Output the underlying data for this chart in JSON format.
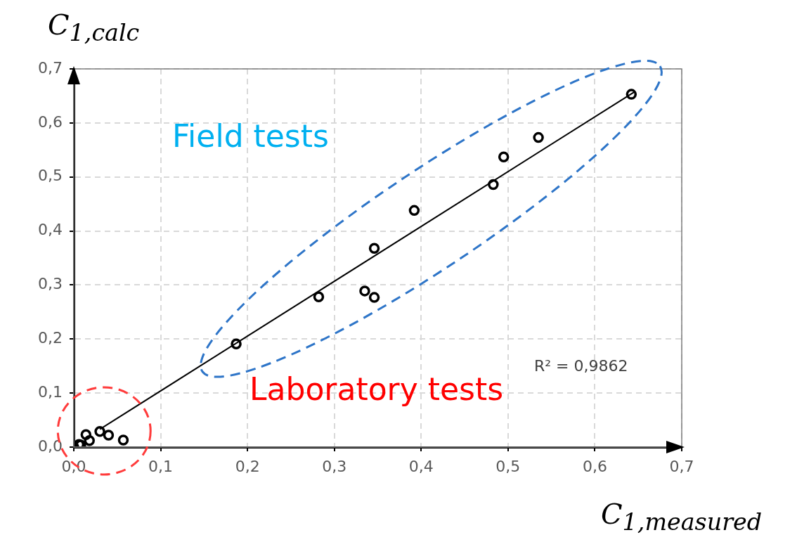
{
  "chart_data": {
    "type": "scatter",
    "xlabel": "C$_{1,measured}$",
    "ylabel": "C$_{1,calc}$",
    "annotations": [
      "Field tests",
      "Laboratory tests",
      "R² = 0,9862"
    ],
    "xlim": [
      0,
      0.7
    ],
    "ylim": [
      0,
      0.7
    ],
    "xticks": [
      {
        "value": 0,
        "label": "0,0"
      },
      {
        "value": 0.1,
        "label": "0,1"
      },
      {
        "value": 0.2,
        "label": "0,2"
      },
      {
        "value": 0.3,
        "label": "0,3"
      },
      {
        "value": 0.4,
        "label": "0,4"
      },
      {
        "value": 0.5,
        "label": "0,5"
      },
      {
        "value": 0.6,
        "label": "0,6"
      },
      {
        "value": 0.7,
        "label": "0,7"
      }
    ],
    "yticks": [
      {
        "value": 0,
        "label": "0,0"
      },
      {
        "value": 0.1,
        "label": "0,1"
      },
      {
        "value": 0.2,
        "label": "0,2"
      },
      {
        "value": 0.3,
        "label": "0,3"
      },
      {
        "value": 0.4,
        "label": "0,4"
      },
      {
        "value": 0.5,
        "label": "0,5"
      },
      {
        "value": 0.6,
        "label": "0,6"
      },
      {
        "value": 0.7,
        "label": "0,7"
      }
    ],
    "grid": true,
    "series": [
      {
        "marker": "circle",
        "color": "#000000",
        "x": [
          0.0,
          0.006,
          0.008,
          0.014,
          0.018,
          0.03,
          0.04,
          0.057,
          0.187,
          0.282,
          0.335,
          0.346,
          0.346,
          0.392,
          0.483,
          0.495,
          0.535,
          0.642
        ],
        "values": [
          0.0,
          0.005,
          0.004,
          0.023,
          0.012,
          0.029,
          0.022,
          0.013,
          0.191,
          0.278,
          0.289,
          0.277,
          0.368,
          0.438,
          0.486,
          0.537,
          0.573,
          0.653
        ]
      },
      {
        "type": "line",
        "color": "#000000",
        "x": [
          0.03,
          0.645
        ],
        "values": [
          0.033,
          0.657
        ]
      }
    ]
  }
}
